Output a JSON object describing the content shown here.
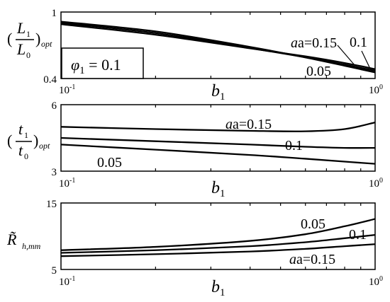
{
  "chart_data": [
    {
      "type": "line",
      "xscale": "log",
      "xlim": [
        0.1,
        1
      ],
      "ylim": [
        0.4,
        1
      ],
      "xlabel": "b1",
      "ylabel": "(L1/L0)opt",
      "x_tick_labels": [
        {
          "base": "10",
          "exp": "-1"
        },
        {
          "base": "10",
          "exp": "0"
        }
      ],
      "y_tick_labels": [
        "1",
        "0.4"
      ],
      "annotation": "φ1 = 0.1",
      "x": [
        0.1,
        0.2,
        0.4,
        0.6,
        0.8,
        1.0
      ],
      "series": [
        {
          "name": "a=0.15",
          "values": [
            0.913,
            0.825,
            0.685,
            0.59,
            0.515,
            0.455
          ]
        },
        {
          "name": "0.1",
          "values": [
            0.902,
            0.81,
            0.675,
            0.592,
            0.525,
            0.47
          ]
        },
        {
          "name": "0.05",
          "values": [
            0.89,
            0.795,
            0.672,
            0.6,
            0.54,
            0.485
          ]
        }
      ]
    },
    {
      "type": "line",
      "xscale": "log",
      "xlim": [
        0.1,
        1
      ],
      "ylim": [
        3,
        6
      ],
      "xlabel": "b1",
      "ylabel": "(t1/t0)opt",
      "x_tick_labels": [
        {
          "base": "10",
          "exp": "-1"
        },
        {
          "base": "10",
          "exp": "0"
        }
      ],
      "y_tick_labels": [
        "6",
        "3"
      ],
      "x": [
        0.1,
        0.2,
        0.4,
        0.6,
        0.8,
        1.0
      ],
      "series": [
        {
          "name": "a=0.15",
          "values": [
            5.0,
            4.9,
            4.82,
            4.8,
            4.9,
            5.2
          ]
        },
        {
          "name": "0.1",
          "values": [
            4.5,
            4.35,
            4.2,
            4.1,
            4.05,
            4.05
          ]
        },
        {
          "name": "0.05",
          "values": [
            4.2,
            3.97,
            3.73,
            3.56,
            3.43,
            3.33
          ]
        }
      ]
    },
    {
      "type": "line",
      "xscale": "log",
      "xlim": [
        0.1,
        1
      ],
      "ylim": [
        5,
        15
      ],
      "xlabel": "b1",
      "ylabel": "R̃h,mm",
      "x_tick_labels": [
        {
          "base": "10",
          "exp": "-1"
        },
        {
          "base": "10",
          "exp": "0"
        }
      ],
      "y_tick_labels": [
        "15",
        "5"
      ],
      "x": [
        0.1,
        0.2,
        0.4,
        0.6,
        0.8,
        1.0
      ],
      "series": [
        {
          "name": "0.05",
          "values": [
            7.9,
            8.4,
            9.3,
            10.3,
            11.5,
            12.6
          ]
        },
        {
          "name": "0.1",
          "values": [
            7.5,
            7.9,
            8.5,
            9.1,
            9.7,
            10.2
          ]
        },
        {
          "name": "a=0.15",
          "values": [
            7.0,
            7.3,
            7.7,
            8.1,
            8.5,
            8.8
          ]
        }
      ]
    }
  ],
  "panels": [
    {
      "y_top": "1",
      "y_bottom": "0.4",
      "xlabel_main": "b",
      "xlabel_sub": "1",
      "ylab": {
        "open": "(",
        "num": "L",
        "num_sub": "1",
        "den": "L",
        "den_sub": "0",
        "close": ")",
        "sub": "opt"
      },
      "box_text": {
        "main": "φ",
        "sub": "1",
        "rest": " = 0.1"
      },
      "labels": [
        "a=0.15",
        "0.1",
        "0.05"
      ]
    },
    {
      "y_top": "6",
      "y_bottom": "3",
      "xlabel_main": "b",
      "xlabel_sub": "1",
      "ylab": {
        "open": "(",
        "num": "t",
        "num_sub": "1",
        "den": "t",
        "den_sub": "0",
        "close": ")",
        "sub": "opt"
      },
      "labels": [
        "a=0.15",
        "0.1",
        "0.05"
      ]
    },
    {
      "y_top": "15",
      "y_bottom": "5",
      "xlabel_main": "b",
      "xlabel_sub": "1",
      "ylab": {
        "main": "R̃",
        "sub": "h,mm"
      },
      "labels": [
        "0.05",
        "0.1",
        "a=0.15"
      ]
    }
  ],
  "x_ticks": {
    "left_base": "10",
    "left_exp": "-1",
    "right_base": "10",
    "right_exp": "0"
  }
}
